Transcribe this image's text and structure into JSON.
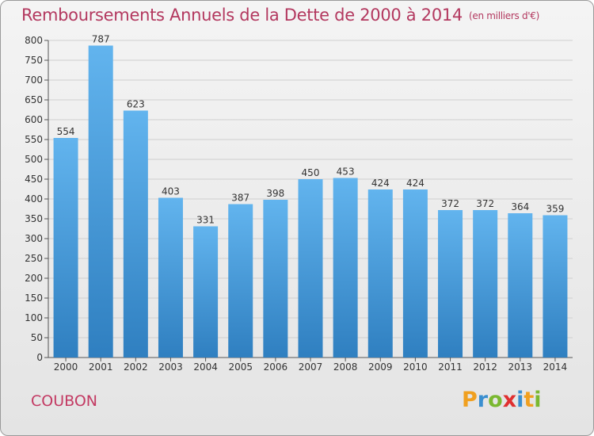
{
  "title": "Remboursements Annuels de la Dette de 2000 à 2014",
  "unit": "(en milliers d'€)",
  "commune": "COUBON",
  "brand": {
    "letters": [
      "P",
      "r",
      "o",
      "x",
      "i",
      "t",
      "i"
    ],
    "colors": [
      "#f0a020",
      "#3a8fd0",
      "#7ab830",
      "#e03030",
      "#3a8fd0",
      "#f0a020",
      "#7ab830"
    ]
  },
  "chart_data": {
    "type": "bar",
    "title": "Remboursements Annuels de la Dette de 2000 à 2014",
    "ylabel": "en milliers d'€",
    "xlabel": "",
    "categories": [
      "2000",
      "2001",
      "2002",
      "2003",
      "2004",
      "2005",
      "2006",
      "2007",
      "2008",
      "2009",
      "2010",
      "2011",
      "2012",
      "2013",
      "2014"
    ],
    "values": [
      554,
      787,
      623,
      403,
      331,
      387,
      398,
      450,
      453,
      424,
      424,
      372,
      372,
      364,
      359
    ],
    "ylim": [
      0,
      800
    ],
    "yticks": [
      0,
      50,
      100,
      150,
      200,
      250,
      300,
      350,
      400,
      450,
      500,
      550,
      600,
      650,
      700,
      750,
      800
    ],
    "grid": true,
    "bar_color": "#4a9ee0"
  }
}
